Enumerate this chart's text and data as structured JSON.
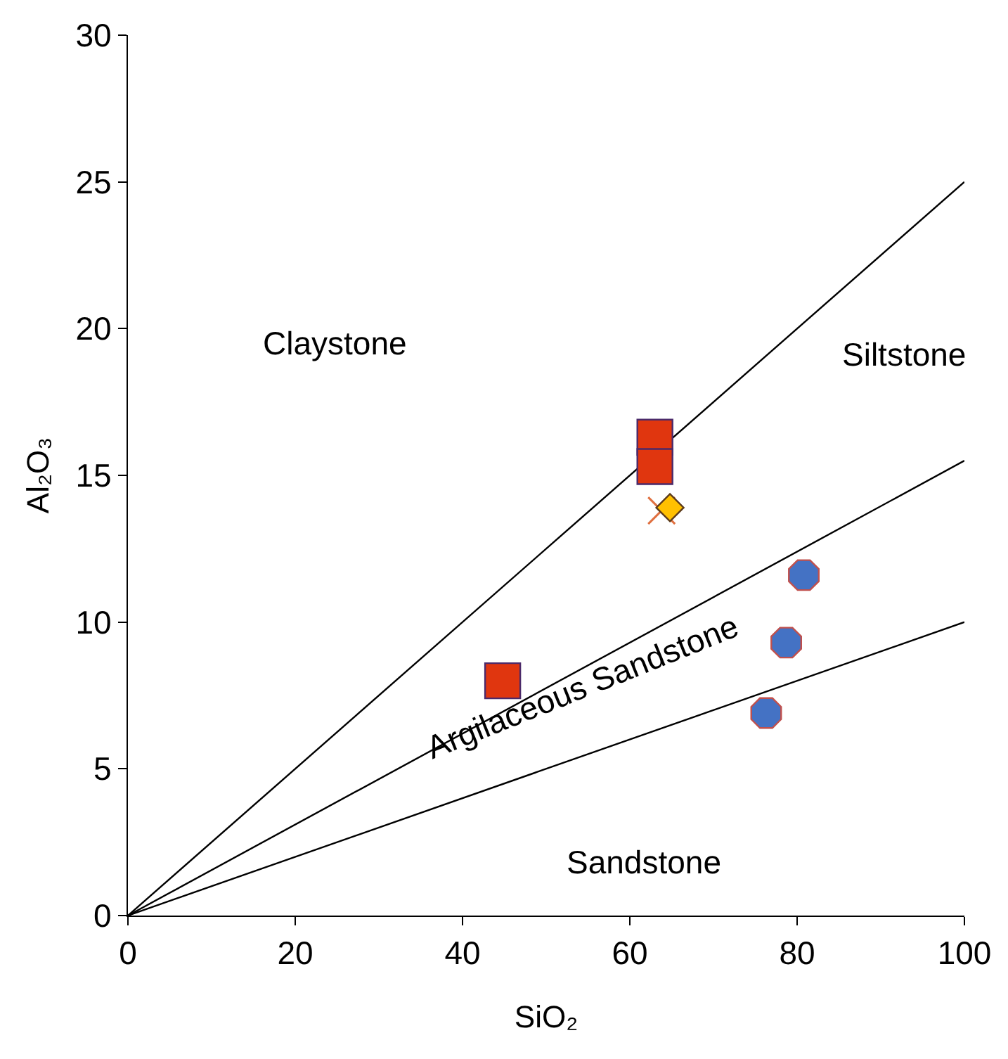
{
  "chart_data": {
    "type": "scatter",
    "xlabel": "SiO₂",
    "ylabel": "Al₂O₃",
    "xlim": [
      0,
      100
    ],
    "xticks": [
      0,
      20,
      40,
      60,
      80,
      100
    ],
    "ylim": [
      0,
      30
    ],
    "yticks": [
      0,
      5,
      10,
      15,
      20,
      25,
      30
    ],
    "series": [
      {
        "type": "line",
        "color": "#000000",
        "marker": "none",
        "x": [
          0,
          100
        ],
        "values": [
          0,
          25
        ]
      },
      {
        "type": "line",
        "color": "#000000",
        "marker": "none",
        "x": [
          0,
          100
        ],
        "values": [
          0,
          15.5
        ]
      },
      {
        "type": "line",
        "color": "#000000",
        "marker": "none",
        "x": [
          0,
          100
        ],
        "values": [
          0,
          10
        ]
      },
      {
        "color": "#e0360f",
        "marker": "square",
        "x": [
          63.0,
          63.0,
          44.8
        ],
        "values": [
          16.3,
          15.3,
          8.0
        ]
      },
      {
        "color": "#e07040",
        "marker": "cross",
        "x": [
          63.8
        ],
        "values": [
          13.8
        ]
      },
      {
        "color": "#ffc000",
        "marker": "diamond",
        "x": [
          64.8
        ],
        "values": [
          13.9
        ]
      },
      {
        "color": "#4472c4",
        "marker": "circle",
        "x": [
          80.8,
          78.7,
          76.3
        ],
        "values": [
          11.6,
          9.3,
          6.9
        ]
      }
    ],
    "annotations": [
      "Claystone",
      "Siltstone",
      "Argilaceous Sandstone",
      "Sandstone"
    ]
  }
}
